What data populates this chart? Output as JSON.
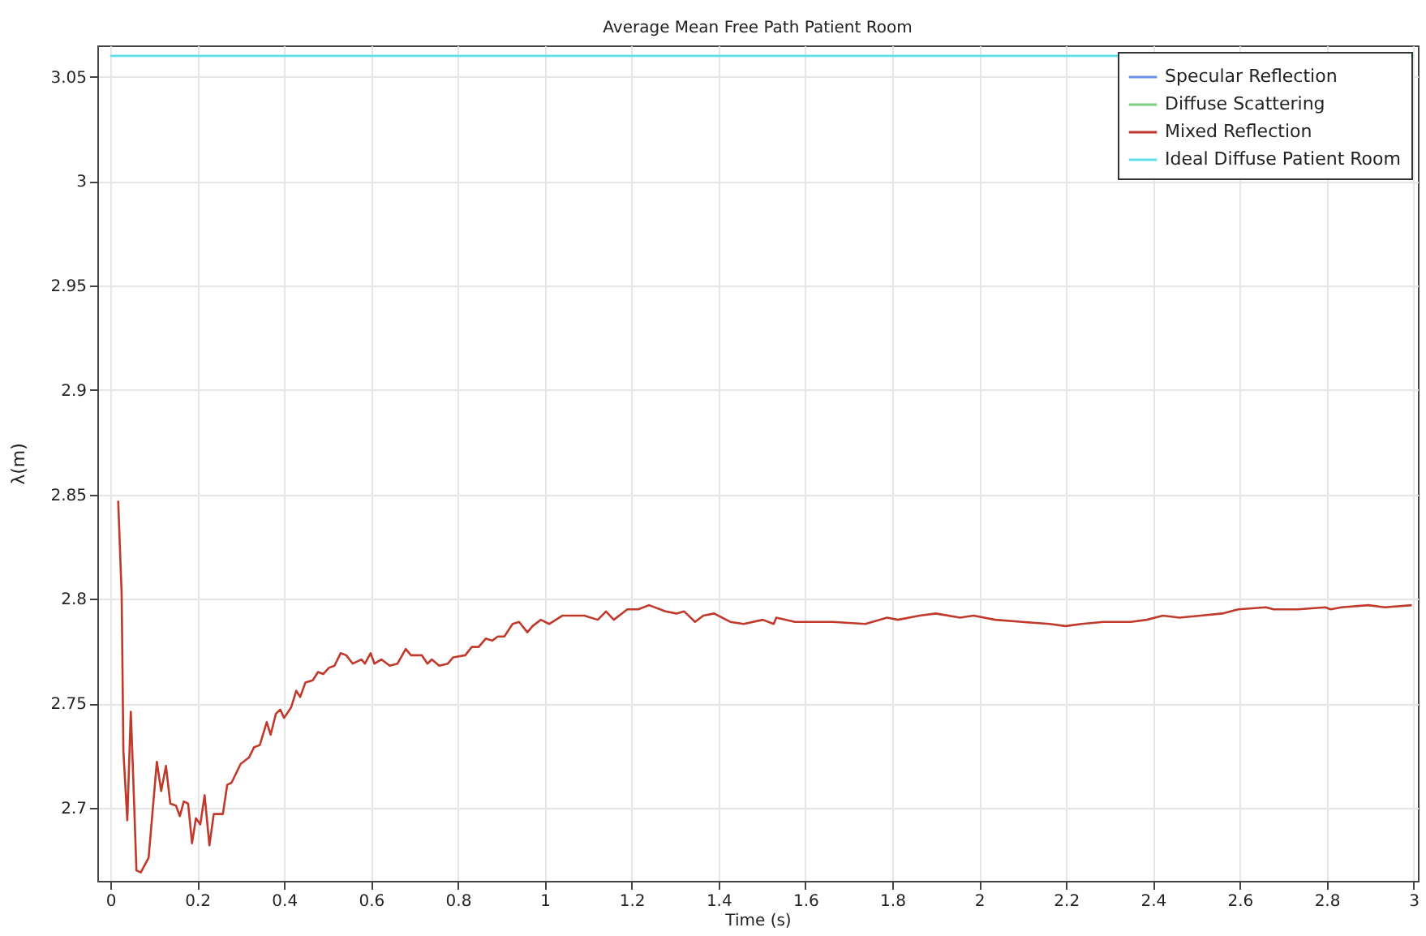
{
  "chart_data": {
    "type": "line",
    "title": "Average Mean Free Path Patient Room",
    "xlabel": "Time (s)",
    "ylabel": "λ(m)",
    "xlim": [
      -0.03,
      3.01
    ],
    "ylim": [
      2.665,
      3.065
    ],
    "xticks": [
      0,
      0.2,
      0.4,
      0.6,
      0.8,
      1,
      1.2,
      1.4,
      1.6,
      1.8,
      2,
      2.2,
      2.4,
      2.6,
      2.8,
      3
    ],
    "yticks": [
      2.7,
      2.75,
      2.8,
      2.85,
      2.9,
      2.95,
      3,
      3.05
    ],
    "grid": true,
    "legend": "top right",
    "marker": "none",
    "line_style": "solid",
    "series": [
      {
        "name": "Specular Reflection",
        "color": "#6f8fe8"
      },
      {
        "name": "Diffuse Scattering",
        "color": "#7fd17f"
      },
      {
        "name": "Mixed Reflection",
        "color": "#c0392b",
        "x": [
          0.018,
          0.026,
          0.03,
          0.039,
          0.047,
          0.051,
          0.06,
          0.07,
          0.088,
          0.107,
          0.117,
          0.128,
          0.138,
          0.151,
          0.16,
          0.169,
          0.179,
          0.188,
          0.197,
          0.207,
          0.217,
          0.228,
          0.238,
          0.259,
          0.269,
          0.279,
          0.3,
          0.319,
          0.331,
          0.344,
          0.36,
          0.369,
          0.381,
          0.391,
          0.4,
          0.416,
          0.428,
          0.437,
          0.449,
          0.466,
          0.478,
          0.49,
          0.503,
          0.516,
          0.53,
          0.543,
          0.558,
          0.578,
          0.586,
          0.599,
          0.608,
          0.624,
          0.643,
          0.661,
          0.68,
          0.692,
          0.717,
          0.73,
          0.74,
          0.757,
          0.777,
          0.789,
          0.817,
          0.832,
          0.848,
          0.864,
          0.879,
          0.892,
          0.907,
          0.926,
          0.941,
          0.96,
          0.972,
          0.991,
          1.01,
          1.041,
          1.091,
          1.122,
          1.141,
          1.159,
          1.19,
          1.215,
          1.24,
          1.278,
          1.303,
          1.321,
          1.346,
          1.365,
          1.39,
          1.427,
          1.458,
          1.502,
          1.527,
          1.533,
          1.576,
          1.614,
          1.663,
          1.738,
          1.788,
          1.813,
          1.863,
          1.9,
          1.956,
          1.987,
          2.037,
          2.099,
          2.162,
          2.199,
          2.236,
          2.286,
          2.349,
          2.386,
          2.423,
          2.461,
          2.51,
          2.56,
          2.597,
          2.66,
          2.678,
          2.734,
          2.797,
          2.809,
          2.834,
          2.896,
          2.934,
          2.996
        ],
        "values": [
          2.847,
          2.802,
          2.727,
          2.694,
          2.746,
          2.724,
          2.67,
          2.669,
          2.676,
          2.722,
          2.708,
          2.72,
          2.702,
          2.701,
          2.696,
          2.703,
          2.702,
          2.683,
          2.695,
          2.692,
          2.706,
          2.682,
          2.697,
          2.697,
          2.711,
          2.712,
          2.721,
          2.724,
          2.729,
          2.73,
          2.741,
          2.735,
          2.745,
          2.747,
          2.743,
          2.748,
          2.756,
          2.753,
          2.76,
          2.761,
          2.765,
          2.764,
          2.767,
          2.768,
          2.774,
          2.773,
          2.769,
          2.771,
          2.769,
          2.774,
          2.769,
          2.771,
          2.768,
          2.769,
          2.776,
          2.773,
          2.773,
          2.769,
          2.771,
          2.768,
          2.769,
          2.772,
          2.773,
          2.777,
          2.777,
          2.781,
          2.78,
          2.782,
          2.782,
          2.788,
          2.789,
          2.784,
          2.787,
          2.79,
          2.788,
          2.792,
          2.792,
          2.79,
          2.794,
          2.79,
          2.795,
          2.795,
          2.797,
          2.794,
          2.793,
          2.794,
          2.789,
          2.792,
          2.793,
          2.789,
          2.788,
          2.79,
          2.788,
          2.791,
          2.789,
          2.789,
          2.789,
          2.788,
          2.791,
          2.79,
          2.792,
          2.793,
          2.791,
          2.792,
          2.79,
          2.789,
          2.788,
          2.787,
          2.788,
          2.789,
          2.789,
          2.79,
          2.792,
          2.791,
          2.792,
          2.793,
          2.795,
          2.796,
          2.795,
          2.795,
          2.796,
          2.795,
          2.796,
          2.797,
          2.796,
          2.797
        ]
      },
      {
        "name": "Ideal Diffuse Patient Room",
        "color": "#5fe0e8",
        "x": [
          0,
          3
        ],
        "values": [
          3.06,
          3.06
        ]
      }
    ]
  }
}
